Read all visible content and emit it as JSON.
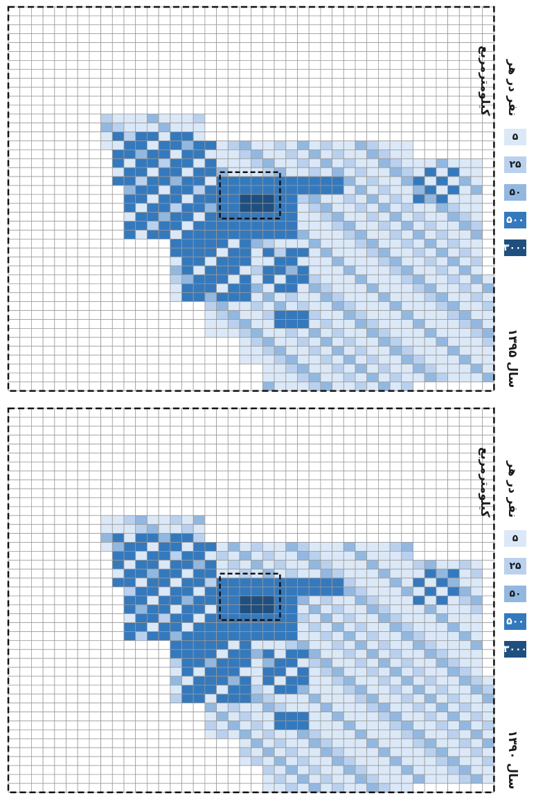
{
  "legend": {
    "title": "نفر در هر کیلومترمربع",
    "items": [
      {
        "label": "۵",
        "color": "#dbe8f7",
        "text_color": "#1a1a1a"
      },
      {
        "label": "۲۵",
        "color": "#b9d1ee",
        "text_color": "#1a1a1a"
      },
      {
        "label": "۵۰",
        "color": "#92b8e0",
        "text_color": "#1a1a1a"
      },
      {
        "label": "۵۰۰",
        "color": "#3579bd",
        "text_color": "#ffffff"
      },
      {
        "label": "۳۰۰۰",
        "color": "#1f4f7f",
        "text_color": "#ffffff"
      }
    ]
  },
  "maps": [
    {
      "year_label": "سال ۱۳۹۵"
    },
    {
      "year_label": "سال ۱۳۹۰"
    }
  ]
}
